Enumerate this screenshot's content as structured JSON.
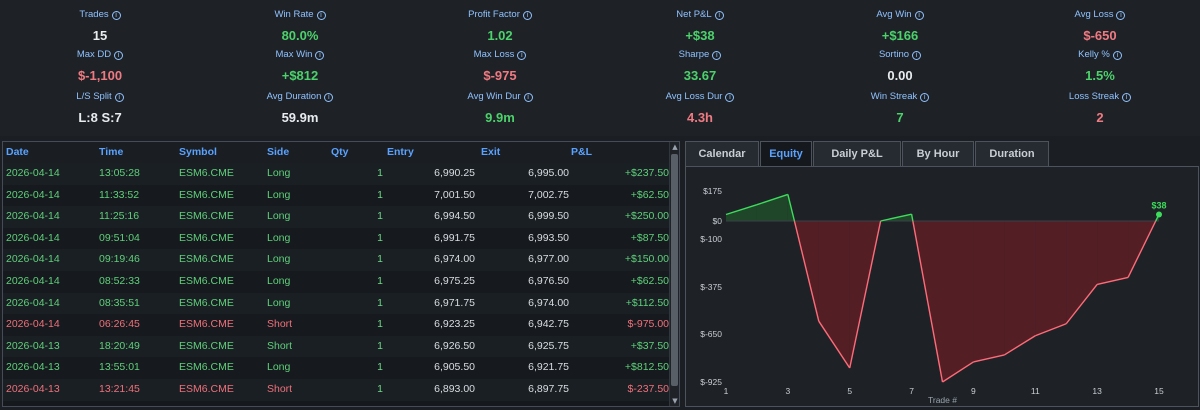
{
  "stats": [
    {
      "label": "Trades",
      "value": "15",
      "tone": "white"
    },
    {
      "label": "Win Rate",
      "value": "80.0%",
      "tone": "green"
    },
    {
      "label": "Profit Factor",
      "value": "1.02",
      "tone": "green"
    },
    {
      "label": "Net P&L",
      "value": "+$38",
      "tone": "green"
    },
    {
      "label": "Avg Win",
      "value": "+$166",
      "tone": "green"
    },
    {
      "label": "Avg Loss",
      "value": "$-650",
      "tone": "red"
    },
    {
      "label": "Max DD",
      "value": "$-1,100",
      "tone": "red"
    },
    {
      "label": "Max Win",
      "value": "+$812",
      "tone": "green"
    },
    {
      "label": "Max Loss",
      "value": "$-975",
      "tone": "red"
    },
    {
      "label": "Sharpe",
      "value": "33.67",
      "tone": "green"
    },
    {
      "label": "Sortino",
      "value": "0.00",
      "tone": "white"
    },
    {
      "label": "Kelly %",
      "value": "1.5%",
      "tone": "green"
    },
    {
      "label": "L/S Split",
      "value": "L:8 S:7",
      "tone": "white"
    },
    {
      "label": "Avg Duration",
      "value": "59.9m",
      "tone": "white"
    },
    {
      "label": "Avg Win Dur",
      "value": "9.9m",
      "tone": "green"
    },
    {
      "label": "Avg Loss Dur",
      "value": "4.3h",
      "tone": "red"
    },
    {
      "label": "Win Streak",
      "value": "7",
      "tone": "green"
    },
    {
      "label": "Loss Streak",
      "value": "2",
      "tone": "red"
    }
  ],
  "info_icon_glyph": "i",
  "table": {
    "columns": [
      "Date",
      "Time",
      "Symbol",
      "Side",
      "Qty",
      "Entry",
      "Exit",
      "P&L"
    ],
    "rows": [
      {
        "date": "2026-04-14",
        "time": "13:05:28",
        "symbol": "ESM6.CME",
        "side": "Long",
        "qty": "1",
        "entry": "6,990.25",
        "exit": "6,995.00",
        "pnl": "+$237.50",
        "result": "win"
      },
      {
        "date": "2026-04-14",
        "time": "11:33:52",
        "symbol": "ESM6.CME",
        "side": "Long",
        "qty": "1",
        "entry": "7,001.50",
        "exit": "7,002.75",
        "pnl": "+$62.50",
        "result": "win"
      },
      {
        "date": "2026-04-14",
        "time": "11:25:16",
        "symbol": "ESM6.CME",
        "side": "Long",
        "qty": "1",
        "entry": "6,994.50",
        "exit": "6,999.50",
        "pnl": "+$250.00",
        "result": "win"
      },
      {
        "date": "2026-04-14",
        "time": "09:51:04",
        "symbol": "ESM6.CME",
        "side": "Long",
        "qty": "1",
        "entry": "6,991.75",
        "exit": "6,993.50",
        "pnl": "+$87.50",
        "result": "win"
      },
      {
        "date": "2026-04-14",
        "time": "09:19:46",
        "symbol": "ESM6.CME",
        "side": "Long",
        "qty": "1",
        "entry": "6,974.00",
        "exit": "6,977.00",
        "pnl": "+$150.00",
        "result": "win"
      },
      {
        "date": "2026-04-14",
        "time": "08:52:33",
        "symbol": "ESM6.CME",
        "side": "Long",
        "qty": "1",
        "entry": "6,975.25",
        "exit": "6,976.50",
        "pnl": "+$62.50",
        "result": "win"
      },
      {
        "date": "2026-04-14",
        "time": "08:35:51",
        "symbol": "ESM6.CME",
        "side": "Long",
        "qty": "1",
        "entry": "6,971.75",
        "exit": "6,974.00",
        "pnl": "+$112.50",
        "result": "win"
      },
      {
        "date": "2026-04-14",
        "time": "06:26:45",
        "symbol": "ESM6.CME",
        "side": "Short",
        "qty": "1",
        "entry": "6,923.25",
        "exit": "6,942.75",
        "pnl": "$-975.00",
        "result": "loss"
      },
      {
        "date": "2026-04-13",
        "time": "18:20:49",
        "symbol": "ESM6.CME",
        "side": "Short",
        "qty": "1",
        "entry": "6,926.50",
        "exit": "6,925.75",
        "pnl": "+$37.50",
        "result": "win"
      },
      {
        "date": "2026-04-13",
        "time": "13:55:01",
        "symbol": "ESM6.CME",
        "side": "Long",
        "qty": "1",
        "entry": "6,905.50",
        "exit": "6,921.75",
        "pnl": "+$812.50",
        "result": "win"
      },
      {
        "date": "2026-04-13",
        "time": "13:21:45",
        "symbol": "ESM6.CME",
        "side": "Short",
        "qty": "1",
        "entry": "6,893.00",
        "exit": "6,897.75",
        "pnl": "$-237.50",
        "result": "loss"
      }
    ]
  },
  "scrollbar": {
    "up_glyph": "▲",
    "down_glyph": "▼"
  },
  "tabs": [
    {
      "label": "Calendar",
      "active": false
    },
    {
      "label": "Equity",
      "active": true
    },
    {
      "label": "Daily P&L",
      "active": false
    },
    {
      "label": "By Hour",
      "active": false
    },
    {
      "label": "Duration",
      "active": false
    }
  ],
  "chart_data": {
    "type": "area",
    "xlabel": "Trade #",
    "ylabel": "",
    "x": [
      1,
      2,
      3,
      4,
      5,
      6,
      7,
      8,
      9,
      10,
      11,
      12,
      13,
      14,
      15
    ],
    "y": [
      38,
      95,
      155,
      -575,
      -845,
      0,
      40,
      -925,
      -810,
      -770,
      -660,
      -590,
      -360,
      -320,
      38
    ],
    "xticks": [
      1,
      3,
      5,
      7,
      9,
      11,
      13,
      15
    ],
    "yticks": [
      175,
      0,
      -100,
      -375,
      -650,
      -925
    ],
    "ytick_labels": [
      "$175",
      "$0",
      "$-100",
      "$-375",
      "$-650",
      "$-925"
    ],
    "xlim": [
      1,
      15
    ],
    "ylim": [
      -925,
      200
    ],
    "end_label": "$38",
    "line_color_positive": "#3ddc5c",
    "line_color_negative": "#ff6b78",
    "fill_positive": "#1f4a2a",
    "fill_negative": "#5a1e26"
  }
}
